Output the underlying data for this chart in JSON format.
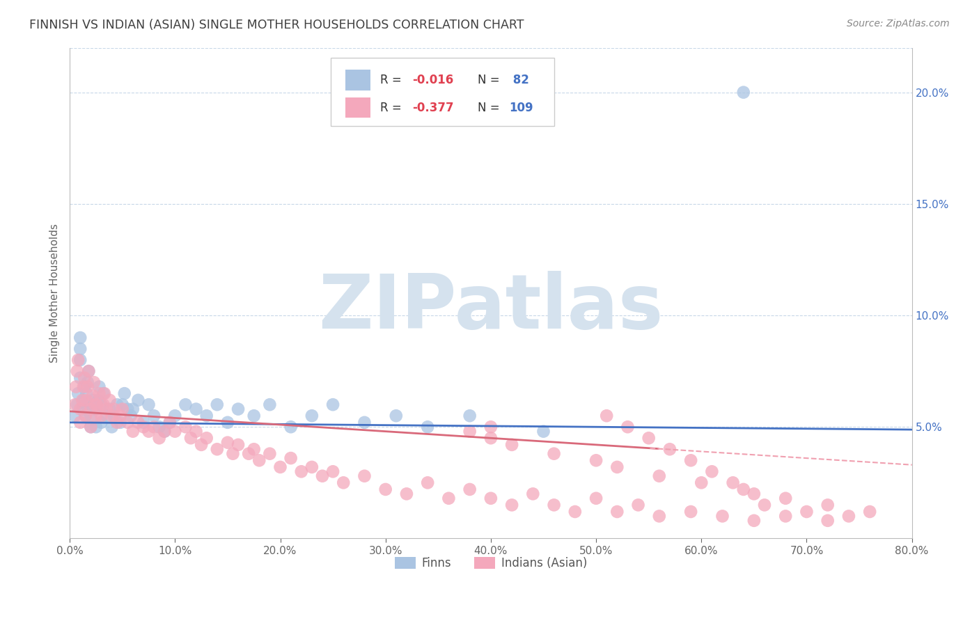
{
  "title": "FINNISH VS INDIAN (ASIAN) SINGLE MOTHER HOUSEHOLDS CORRELATION CHART",
  "source_text": "Source: ZipAtlas.com",
  "ylabel": "Single Mother Households",
  "xlim": [
    0.0,
    0.8
  ],
  "ylim": [
    0.0,
    0.22
  ],
  "xticks": [
    0.0,
    0.1,
    0.2,
    0.3,
    0.4,
    0.5,
    0.6,
    0.7,
    0.8
  ],
  "xticklabels": [
    "0.0%",
    "10.0%",
    "20.0%",
    "30.0%",
    "40.0%",
    "50.0%",
    "60.0%",
    "70.0%",
    "80.0%"
  ],
  "yticks": [
    0.05,
    0.1,
    0.15,
    0.2
  ],
  "yticklabels": [
    "5.0%",
    "10.0%",
    "15.0%",
    "20.0%"
  ],
  "finn_color": "#aac4e2",
  "indian_color": "#f4a8bc",
  "finn_line_color": "#4472c4",
  "indian_line_color": "#d9697a",
  "indian_line_dash_color": "#f0a0b0",
  "finn_R": -0.016,
  "finn_N": 82,
  "indian_R": -0.377,
  "indian_N": 109,
  "finn_label": "Finns",
  "indian_label": "Indians (Asian)",
  "legend_label_color": "#333333",
  "legend_R_color": "#e04050",
  "legend_N_color": "#4472c4",
  "watermark": "ZIPatlas",
  "watermark_color": "#d5e2ee",
  "background_color": "#ffffff",
  "grid_color": "#c8d8e8",
  "title_color": "#404040",
  "finn_scatter_x": [
    0.005,
    0.007,
    0.008,
    0.01,
    0.01,
    0.01,
    0.01,
    0.012,
    0.013,
    0.014,
    0.015,
    0.015,
    0.016,
    0.017,
    0.018,
    0.02,
    0.02,
    0.02,
    0.022,
    0.023,
    0.025,
    0.025,
    0.027,
    0.028,
    0.03,
    0.03,
    0.032,
    0.035,
    0.038,
    0.04,
    0.042,
    0.045,
    0.048,
    0.05,
    0.052,
    0.055,
    0.058,
    0.06,
    0.065,
    0.07,
    0.075,
    0.08,
    0.085,
    0.09,
    0.095,
    0.1,
    0.11,
    0.12,
    0.13,
    0.14,
    0.15,
    0.16,
    0.175,
    0.19,
    0.21,
    0.23,
    0.25,
    0.28,
    0.31,
    0.34,
    0.38,
    0.45,
    0.64
  ],
  "finn_scatter_y": [
    0.055,
    0.06,
    0.065,
    0.072,
    0.08,
    0.085,
    0.09,
    0.058,
    0.062,
    0.068,
    0.055,
    0.06,
    0.065,
    0.07,
    0.075,
    0.05,
    0.055,
    0.06,
    0.062,
    0.058,
    0.05,
    0.058,
    0.062,
    0.068,
    0.052,
    0.06,
    0.065,
    0.055,
    0.058,
    0.05,
    0.055,
    0.06,
    0.052,
    0.06,
    0.065,
    0.058,
    0.055,
    0.058,
    0.062,
    0.052,
    0.06,
    0.055,
    0.05,
    0.048,
    0.052,
    0.055,
    0.06,
    0.058,
    0.055,
    0.06,
    0.052,
    0.058,
    0.055,
    0.06,
    0.05,
    0.055,
    0.06,
    0.052,
    0.055,
    0.05,
    0.055,
    0.048,
    0.2
  ],
  "indian_scatter_x": [
    0.005,
    0.006,
    0.007,
    0.008,
    0.01,
    0.01,
    0.012,
    0.013,
    0.014,
    0.015,
    0.016,
    0.017,
    0.018,
    0.02,
    0.02,
    0.022,
    0.023,
    0.024,
    0.025,
    0.026,
    0.028,
    0.03,
    0.032,
    0.033,
    0.035,
    0.038,
    0.04,
    0.042,
    0.045,
    0.048,
    0.05,
    0.055,
    0.06,
    0.065,
    0.07,
    0.075,
    0.08,
    0.085,
    0.09,
    0.095,
    0.1,
    0.11,
    0.115,
    0.12,
    0.125,
    0.13,
    0.14,
    0.15,
    0.155,
    0.16,
    0.17,
    0.175,
    0.18,
    0.19,
    0.2,
    0.21,
    0.22,
    0.23,
    0.24,
    0.25,
    0.26,
    0.28,
    0.3,
    0.32,
    0.34,
    0.36,
    0.38,
    0.4,
    0.42,
    0.44,
    0.46,
    0.48,
    0.5,
    0.52,
    0.54,
    0.56,
    0.59,
    0.62,
    0.65,
    0.66,
    0.68,
    0.7,
    0.72,
    0.74,
    0.38,
    0.4,
    0.42,
    0.46,
    0.5,
    0.52,
    0.56,
    0.6,
    0.64,
    0.68,
    0.72,
    0.76,
    0.51,
    0.53,
    0.55,
    0.57,
    0.59,
    0.61,
    0.63,
    0.65,
    0.4
  ],
  "indian_scatter_y": [
    0.06,
    0.068,
    0.075,
    0.08,
    0.052,
    0.058,
    0.062,
    0.068,
    0.072,
    0.055,
    0.062,
    0.068,
    0.075,
    0.05,
    0.058,
    0.064,
    0.07,
    0.06,
    0.055,
    0.06,
    0.065,
    0.055,
    0.06,
    0.065,
    0.058,
    0.062,
    0.055,
    0.058,
    0.052,
    0.055,
    0.058,
    0.052,
    0.048,
    0.052,
    0.05,
    0.048,
    0.05,
    0.045,
    0.048,
    0.052,
    0.048,
    0.05,
    0.045,
    0.048,
    0.042,
    0.045,
    0.04,
    0.043,
    0.038,
    0.042,
    0.038,
    0.04,
    0.035,
    0.038,
    0.032,
    0.036,
    0.03,
    0.032,
    0.028,
    0.03,
    0.025,
    0.028,
    0.022,
    0.02,
    0.025,
    0.018,
    0.022,
    0.018,
    0.015,
    0.02,
    0.015,
    0.012,
    0.018,
    0.012,
    0.015,
    0.01,
    0.012,
    0.01,
    0.008,
    0.015,
    0.01,
    0.012,
    0.008,
    0.01,
    0.048,
    0.045,
    0.042,
    0.038,
    0.035,
    0.032,
    0.028,
    0.025,
    0.022,
    0.018,
    0.015,
    0.012,
    0.055,
    0.05,
    0.045,
    0.04,
    0.035,
    0.03,
    0.025,
    0.02,
    0.05
  ]
}
